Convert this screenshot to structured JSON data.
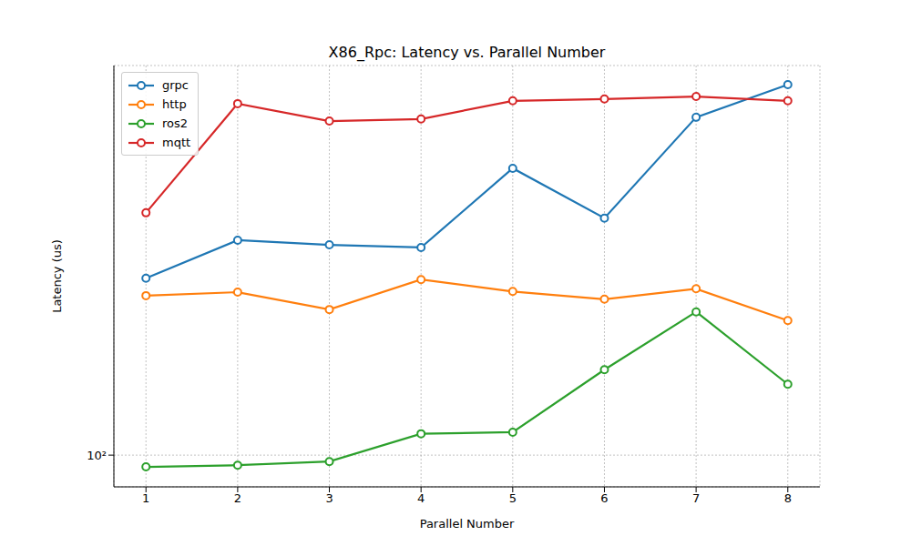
{
  "chart_data": {
    "type": "line",
    "title": "X86_Rpc: Latency vs. Parallel Number",
    "x_label": "Parallel Number",
    "y_label": "Latency (us)",
    "x": [
      1,
      2,
      3,
      4,
      5,
      6,
      7,
      8
    ],
    "xlim": [
      0.65,
      8.35
    ],
    "xticks": [
      1,
      2,
      3,
      4,
      5,
      6,
      7,
      8
    ],
    "ylim": [
      83.4,
      929
    ],
    "yticks": [
      {
        "value": 100,
        "label": "10²"
      }
    ],
    "log": "y",
    "grid": true,
    "legend": "upper left",
    "marker": "o",
    "series": [
      {
        "name": "grpc",
        "color": "#1f77b4",
        "values": [
          275,
          342,
          333,
          328,
          516,
          388,
          691,
          833
        ]
      },
      {
        "name": "http",
        "color": "#ff7f0e",
        "values": [
          249,
          254,
          230,
          273,
          255,
          244,
          259,
          216
        ]
      },
      {
        "name": "ros2",
        "color": "#2ca02c",
        "values": [
          93.5,
          94.4,
          96.4,
          113,
          114,
          163,
          227,
          150
        ]
      },
      {
        "name": "mqtt",
        "color": "#d62728",
        "values": [
          400,
          747,
          676,
          684,
          759,
          767,
          778,
          759
        ]
      }
    ]
  }
}
